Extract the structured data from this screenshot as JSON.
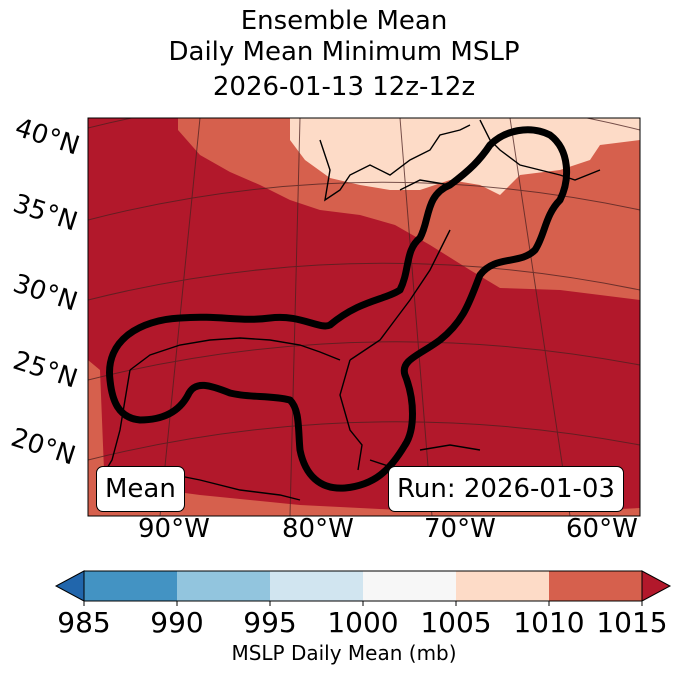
{
  "title": {
    "line1": "Ensemble Mean",
    "line2": "Daily Mean Minimum MSLP",
    "line3": "2026-01-13 12z-12z"
  },
  "map": {
    "lat_labels": [
      "40°N",
      "35°N",
      "30°N",
      "25°N",
      "20°N"
    ],
    "lon_labels": [
      "90°W",
      "80°W",
      "70°W",
      "60°W"
    ],
    "mean_box": "Mean",
    "run_box": "Run: 2026-01-03",
    "colors": {
      "1010-1015": "#b2182b",
      "1005-1010": "#d6604d",
      "1000-1005": "#fddbc7",
      "outline": "#000000"
    }
  },
  "colorbar": {
    "ticks": [
      "985",
      "990",
      "995",
      "1000",
      "1005",
      "1010",
      "1015"
    ],
    "label": "MSLP Daily Mean (mb)",
    "colors": [
      "#2166ac",
      "#4393c3",
      "#92c5de",
      "#d1e5f0",
      "#f7f7f7",
      "#fddbc7",
      "#d6604d",
      "#b2182b"
    ]
  }
}
